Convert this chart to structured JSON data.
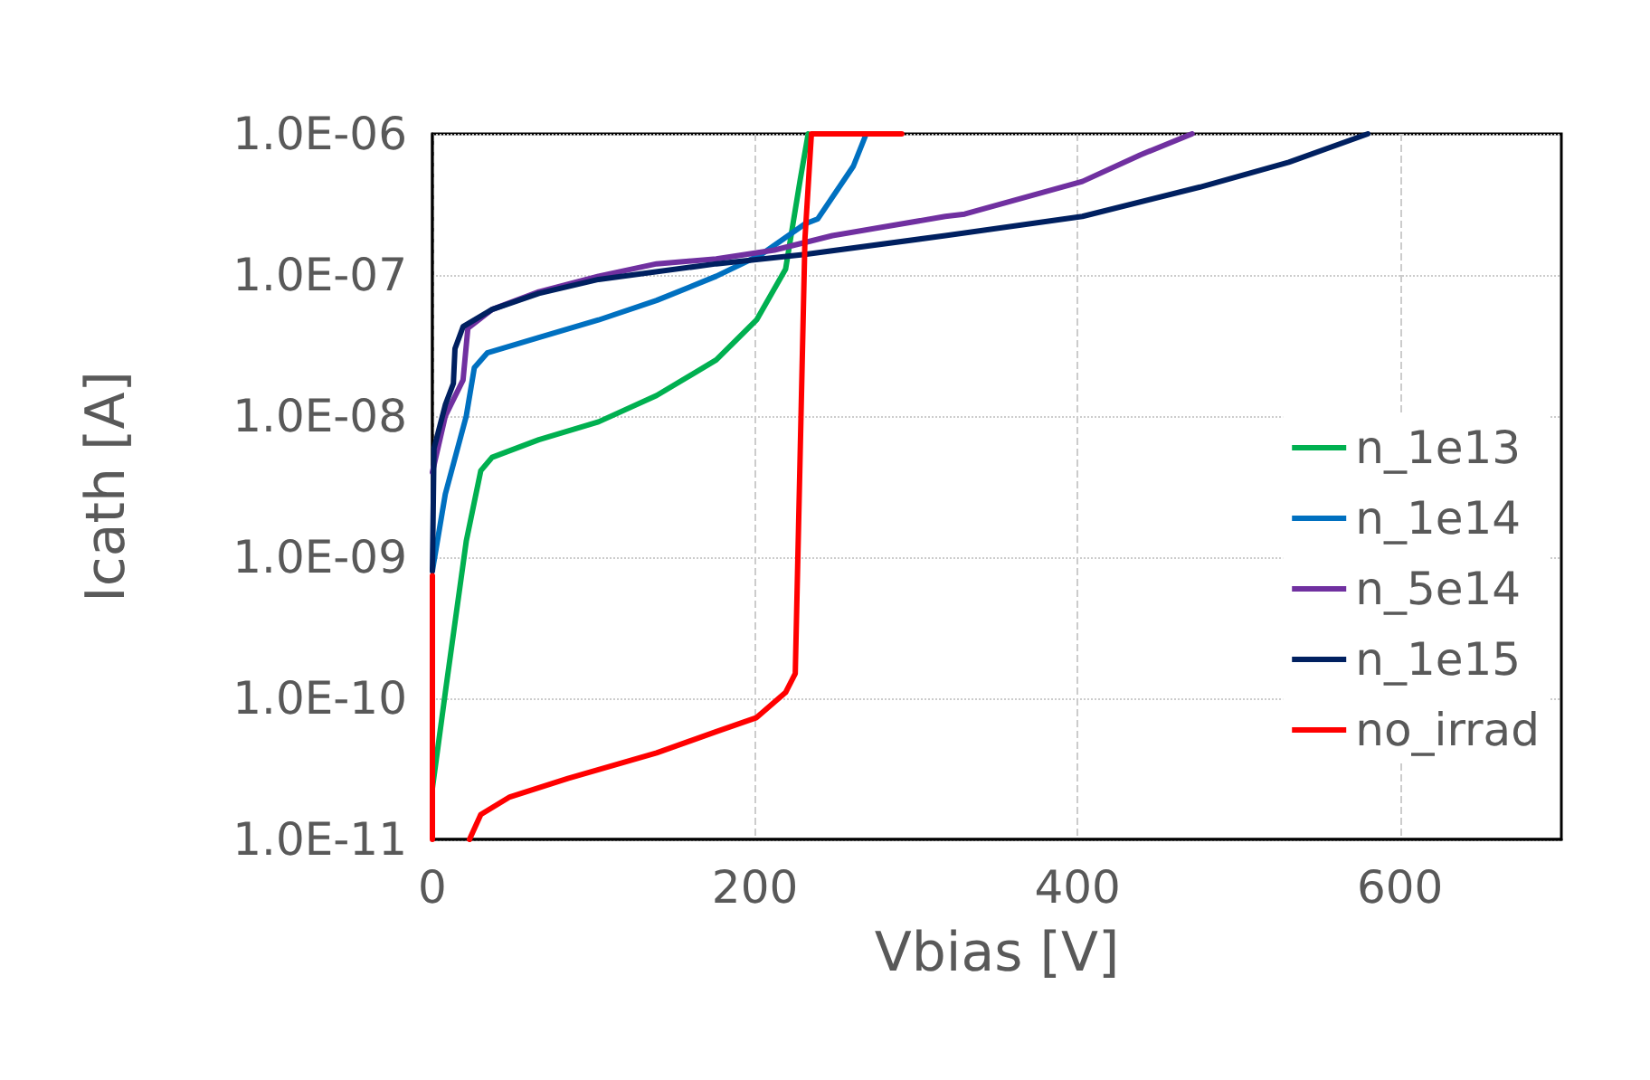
{
  "chart_data": {
    "type": "line",
    "xlabel": "Vbias [V]",
    "ylabel": "Icath [A]",
    "log": "y",
    "grid": true,
    "legend": "right",
    "line_style": "solid",
    "marker": "none",
    "xlim": [
      0,
      700
    ],
    "xticks": [
      0,
      200,
      400,
      600
    ],
    "ylim": [
      1e-11,
      1e-06
    ],
    "yticks": [
      {
        "value": 1e-11,
        "label": "1.0E-11"
      },
      {
        "value": 1e-10,
        "label": "1.0E-10"
      },
      {
        "value": 1e-09,
        "label": "1.0E-09"
      },
      {
        "value": 1e-08,
        "label": "1.0E-08"
      },
      {
        "value": 1e-07,
        "label": "1.0E-07"
      },
      {
        "value": 1e-06,
        "label": "1.0E-06"
      }
    ],
    "series": [
      {
        "name": "n_1e13",
        "color": "#00b050",
        "x": [
          0,
          8,
          21,
          30,
          37,
          66,
          103,
          139,
          176,
          201,
          219,
          228,
          233
        ],
        "values": [
          2.3e-11,
          1.1e-10,
          1.3e-09,
          4.1e-09,
          5.1e-09,
          6.8e-09,
          9.1e-09,
          1.4e-08,
          2.5e-08,
          4.8e-08,
          1.1e-07,
          4.7e-07,
          1e-06
        ]
      },
      {
        "name": "n_1e14",
        "color": "#0070c0",
        "x": [
          0,
          8,
          21,
          26,
          34,
          66,
          103,
          139,
          176,
          204,
          231,
          239,
          261,
          269
        ],
        "values": [
          8e-10,
          2.8e-09,
          1e-08,
          2.2e-08,
          2.8e-08,
          3.6e-08,
          4.8e-08,
          6.6e-08,
          9.8e-08,
          1.4e-07,
          2.3e-07,
          2.5e-07,
          5.9e-07,
          1e-06
        ]
      },
      {
        "name": "n_5e14",
        "color": "#7030a0",
        "x": [
          0,
          8,
          19,
          22,
          37,
          66,
          103,
          139,
          176,
          212,
          248,
          318,
          330,
          403,
          439,
          471
        ],
        "values": [
          4e-09,
          1e-08,
          1.8e-08,
          4.2e-08,
          5.7e-08,
          7.6e-08,
          9.8e-08,
          1.2e-07,
          1.3e-07,
          1.5e-07,
          1.9e-07,
          2.6e-07,
          2.7e-07,
          4.6e-07,
          7.1e-07,
          1e-06
        ]
      },
      {
        "name": "n_1e15",
        "color": "#002060",
        "x": [
          0,
          1,
          8,
          13,
          14,
          19,
          37,
          66,
          103,
          176,
          231,
          318,
          403,
          476,
          531,
          580
        ],
        "values": [
          8e-10,
          5.9e-09,
          1.2e-08,
          1.7e-08,
          3e-08,
          4.3e-08,
          5.7e-08,
          7.4e-08,
          9.3e-08,
          1.2e-07,
          1.4e-07,
          1.9e-07,
          2.6e-07,
          4.2e-07,
          6.3e-07,
          1e-06
        ]
      },
      {
        "name": "no_irrad",
        "color": "#ff0000",
        "x": [
          0,
          0,
          10,
          23,
          30,
          48,
          84,
          139,
          176,
          201,
          219,
          225,
          227,
          231,
          235,
          291
        ],
        "values": [
          1e-11,
          7.4e-10,
          null,
          1e-11,
          1.5e-11,
          2e-11,
          2.7e-11,
          4.1e-11,
          5.8e-11,
          7.3e-11,
          1.1e-10,
          1.5e-10,
          1.6e-09,
          1.8e-07,
          1e-06,
          1e-06
        ]
      }
    ]
  }
}
